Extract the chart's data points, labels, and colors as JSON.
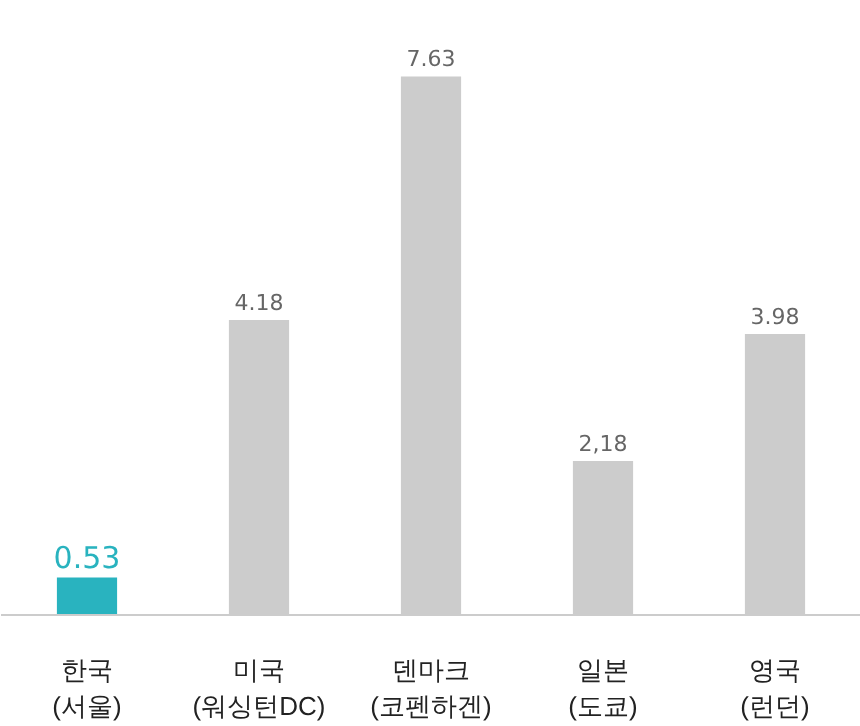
{
  "chart_data": {
    "type": "bar",
    "categories": [
      "한국\n(서울)",
      "미국\n(워싱턴DC)",
      "덴마크\n(코펜하겐)",
      "일본\n(도쿄)",
      "영국\n(런던)"
    ],
    "values": [
      0.53,
      4.18,
      7.63,
      2.18,
      3.98
    ],
    "colors": [
      "#29b3bf",
      "#cccccc",
      "#cccccc",
      "#cccccc",
      "#cccccc"
    ],
    "value_labels": [
      "0.53",
      "4.18",
      "7.63",
      "2,18",
      "3.98"
    ]
  }
}
